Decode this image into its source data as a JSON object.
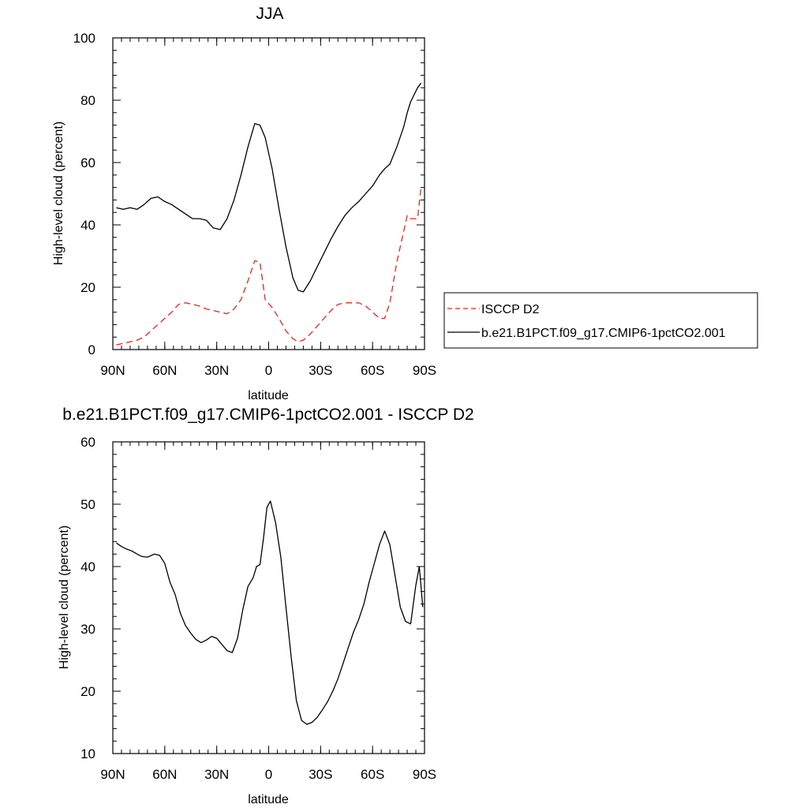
{
  "chart_data": [
    {
      "type": "line",
      "title": "JJA",
      "xlabel": "latitude",
      "ylabel": "High-level cloud (percent)",
      "xlim": [
        -90,
        90
      ],
      "ylim": [
        0,
        100
      ],
      "x_ticks": [
        -90,
        -60,
        -30,
        0,
        30,
        60,
        90
      ],
      "x_tick_labels": [
        "90N",
        "60N",
        "30N",
        "0",
        "30S",
        "60S",
        "90S"
      ],
      "y_ticks": [
        0,
        20,
        40,
        60,
        80,
        100
      ],
      "y_tick_labels": [
        "0",
        "20",
        "40",
        "60",
        "80",
        "100"
      ],
      "legend_position": "right",
      "series": [
        {
          "name": "ISCCP D2",
          "color": "#e8231c",
          "dash": "dashed",
          "x": [
            -88,
            -84,
            -80,
            -76,
            -72,
            -68,
            -64,
            -60,
            -56,
            -52,
            -48,
            -44,
            -40,
            -36,
            -32,
            -28,
            -24,
            -20,
            -16,
            -12,
            -8,
            -5,
            -2,
            2,
            6,
            10,
            14,
            17,
            20,
            24,
            28,
            32,
            36,
            40,
            44,
            48,
            52,
            56,
            60,
            64,
            67,
            70,
            74,
            78,
            80,
            82,
            86,
            88
          ],
          "y": [
            1.5,
            2,
            2.5,
            3,
            4,
            6,
            8,
            10,
            12,
            14.5,
            15,
            14.5,
            14,
            13,
            12.5,
            12,
            11.5,
            13,
            16,
            22,
            28.5,
            28,
            16,
            13.5,
            10,
            6,
            3.5,
            2.5,
            3,
            5,
            7.5,
            10,
            12.5,
            14.5,
            15,
            15,
            15,
            14,
            12,
            10,
            10,
            15,
            28,
            38,
            43,
            42,
            42,
            52
          ]
        },
        {
          "name": "b.e21.B1PCT.f09_g17.CMIP6-1pctCO2.001",
          "color": "#000000",
          "dash": "solid",
          "x": [
            -88,
            -84,
            -80,
            -76,
            -72,
            -68,
            -64,
            -60,
            -56,
            -52,
            -48,
            -44,
            -40,
            -36,
            -32,
            -28,
            -24,
            -20,
            -16,
            -12,
            -8,
            -5,
            -2,
            2,
            6,
            10,
            14,
            17,
            20,
            24,
            28,
            32,
            36,
            40,
            44,
            48,
            52,
            56,
            60,
            64,
            67,
            70,
            74,
            78,
            80,
            82,
            86,
            88
          ],
          "y": [
            45.5,
            45,
            45.5,
            45,
            46.5,
            48.5,
            49,
            47.5,
            46.5,
            45,
            43.5,
            42,
            42,
            41.5,
            39,
            38.5,
            42,
            48,
            56,
            65,
            72.5,
            72,
            68,
            58,
            45,
            33,
            23,
            19,
            18.5,
            22,
            26.5,
            31,
            35.5,
            39.5,
            43,
            45.5,
            47.5,
            50,
            52.5,
            56,
            58,
            59.5,
            65,
            71.5,
            76,
            79.5,
            84,
            85.5
          ]
        }
      ]
    },
    {
      "type": "line",
      "title": "b.e21.B1PCT.f09_g17.CMIP6-1pctCO2.001 - ISCCP D2",
      "xlabel": "latitude",
      "ylabel": "High-level cloud (percent)",
      "xlim": [
        -90,
        90
      ],
      "ylim": [
        10,
        60
      ],
      "x_ticks": [
        -90,
        -60,
        -30,
        0,
        30,
        60,
        90
      ],
      "x_tick_labels": [
        "90N",
        "60N",
        "30N",
        "0",
        "30S",
        "60S",
        "90S"
      ],
      "y_ticks": [
        10,
        20,
        30,
        40,
        50,
        60
      ],
      "y_tick_labels": [
        "10",
        "20",
        "30",
        "40",
        "50",
        "60"
      ],
      "series": [
        {
          "color": "#000000",
          "dash": "solid",
          "x": [
            -88,
            -85,
            -82,
            -79,
            -76,
            -73,
            -70,
            -66,
            -63,
            -60,
            -57,
            -54,
            -51,
            -48,
            -45,
            -42,
            -39,
            -36,
            -33,
            -30,
            -27,
            -24,
            -21,
            -18,
            -15,
            -12,
            -9,
            -7,
            -5,
            -3,
            -1,
            1,
            4,
            7,
            10,
            13,
            16,
            19,
            22,
            25,
            28,
            31,
            34,
            37,
            40,
            43,
            46,
            49,
            52,
            55,
            58,
            61,
            64,
            67,
            70,
            73,
            76,
            79,
            82,
            85,
            87,
            89
          ],
          "y": [
            43.8,
            43.2,
            42.8,
            42.5,
            42,
            41.6,
            41.5,
            42,
            41.8,
            40.5,
            37.5,
            35.5,
            32.5,
            30.5,
            29.3,
            28.3,
            27.8,
            28.2,
            28.8,
            28.5,
            27.5,
            26.5,
            26.2,
            28.5,
            33,
            36.8,
            38.2,
            40,
            40.3,
            44.5,
            49.5,
            50.5,
            47,
            41.5,
            33.5,
            25.5,
            18.5,
            15.3,
            14.7,
            15,
            15.8,
            17,
            18.3,
            20,
            22,
            24.5,
            27,
            29.5,
            31.5,
            34,
            37.5,
            40.5,
            43.5,
            45.7,
            43.5,
            38.5,
            33.5,
            31.2,
            30.8,
            37,
            40,
            33.5
          ]
        }
      ]
    }
  ]
}
